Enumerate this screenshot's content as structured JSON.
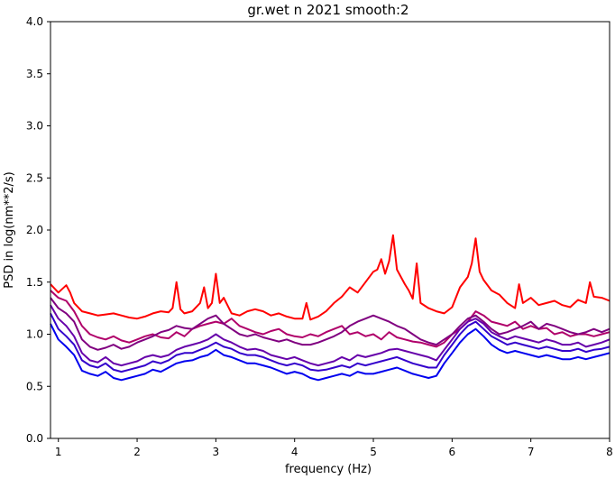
{
  "chart_data": {
    "type": "line",
    "title": "gr.wet n 2021 smooth:2",
    "xlabel": "frequency (Hz)",
    "ylabel": "PSD in log(nm**2/s)",
    "xlim": [
      0.9,
      8.0
    ],
    "ylim": [
      0.0,
      4.0
    ],
    "xticks": [
      1,
      2,
      3,
      4,
      5,
      6,
      7,
      8
    ],
    "yticks": [
      0.0,
      0.5,
      1.0,
      1.5,
      2.0,
      2.5,
      3.0,
      3.5,
      4.0
    ],
    "grid": false,
    "legend": "none",
    "series": [
      {
        "color": "#ff0000",
        "x": [
          0.9,
          1.0,
          1.1,
          1.15,
          1.2,
          1.3,
          1.4,
          1.5,
          1.6,
          1.7,
          1.8,
          1.9,
          2.0,
          2.1,
          2.2,
          2.3,
          2.4,
          2.45,
          2.5,
          2.55,
          2.6,
          2.7,
          2.8,
          2.85,
          2.9,
          2.95,
          3.0,
          3.05,
          3.1,
          3.2,
          3.3,
          3.4,
          3.5,
          3.6,
          3.7,
          3.8,
          3.9,
          4.0,
          4.1,
          4.15,
          4.2,
          4.3,
          4.4,
          4.5,
          4.6,
          4.7,
          4.8,
          4.9,
          5.0,
          5.05,
          5.1,
          5.15,
          5.2,
          5.25,
          5.3,
          5.35,
          5.4,
          5.45,
          5.5,
          5.55,
          5.6,
          5.7,
          5.8,
          5.9,
          6.0,
          6.1,
          6.2,
          6.25,
          6.3,
          6.35,
          6.4,
          6.5,
          6.6,
          6.7,
          6.8,
          6.85,
          6.9,
          7.0,
          7.1,
          7.2,
          7.3,
          7.4,
          7.5,
          7.6,
          7.7,
          7.75,
          7.8,
          7.9,
          8.0
        ],
        "y": [
          1.48,
          1.4,
          1.47,
          1.4,
          1.3,
          1.22,
          1.2,
          1.18,
          1.19,
          1.2,
          1.18,
          1.16,
          1.15,
          1.17,
          1.2,
          1.22,
          1.21,
          1.25,
          1.5,
          1.24,
          1.2,
          1.22,
          1.3,
          1.45,
          1.25,
          1.3,
          1.58,
          1.3,
          1.35,
          1.2,
          1.18,
          1.22,
          1.24,
          1.22,
          1.18,
          1.2,
          1.17,
          1.15,
          1.15,
          1.3,
          1.14,
          1.17,
          1.22,
          1.3,
          1.36,
          1.45,
          1.4,
          1.5,
          1.6,
          1.62,
          1.72,
          1.58,
          1.7,
          1.95,
          1.62,
          1.55,
          1.48,
          1.42,
          1.34,
          1.68,
          1.3,
          1.25,
          1.22,
          1.2,
          1.26,
          1.45,
          1.55,
          1.68,
          1.92,
          1.6,
          1.52,
          1.42,
          1.38,
          1.3,
          1.25,
          1.48,
          1.3,
          1.35,
          1.28,
          1.3,
          1.32,
          1.28,
          1.26,
          1.33,
          1.3,
          1.5,
          1.36,
          1.35,
          1.32
        ]
      },
      {
        "color": "#b0006a",
        "x": [
          0.9,
          1.0,
          1.1,
          1.2,
          1.3,
          1.4,
          1.5,
          1.6,
          1.7,
          1.8,
          1.9,
          2.0,
          2.1,
          2.2,
          2.3,
          2.4,
          2.5,
          2.6,
          2.7,
          2.8,
          2.9,
          3.0,
          3.1,
          3.2,
          3.3,
          3.4,
          3.5,
          3.6,
          3.7,
          3.8,
          3.9,
          4.0,
          4.1,
          4.2,
          4.3,
          4.4,
          4.5,
          4.6,
          4.7,
          4.8,
          4.9,
          5.0,
          5.1,
          5.2,
          5.3,
          5.4,
          5.5,
          5.6,
          5.7,
          5.8,
          5.9,
          6.0,
          6.1,
          6.2,
          6.3,
          6.4,
          6.5,
          6.6,
          6.7,
          6.8,
          6.9,
          7.0,
          7.1,
          7.2,
          7.3,
          7.4,
          7.5,
          7.6,
          7.7,
          7.8,
          7.9,
          8.0
        ],
        "y": [
          1.42,
          1.35,
          1.32,
          1.22,
          1.08,
          1.0,
          0.97,
          0.95,
          0.98,
          0.94,
          0.92,
          0.95,
          0.98,
          1.0,
          0.97,
          0.96,
          1.02,
          0.98,
          1.05,
          1.08,
          1.1,
          1.12,
          1.1,
          1.15,
          1.08,
          1.05,
          1.02,
          1.0,
          1.03,
          1.05,
          1.0,
          0.98,
          0.97,
          1.0,
          0.98,
          1.02,
          1.05,
          1.08,
          1.0,
          1.02,
          0.98,
          1.0,
          0.95,
          1.02,
          0.97,
          0.95,
          0.93,
          0.92,
          0.9,
          0.88,
          0.92,
          1.0,
          1.05,
          1.12,
          1.22,
          1.18,
          1.12,
          1.1,
          1.08,
          1.12,
          1.05,
          1.08,
          1.05,
          1.06,
          1.0,
          1.02,
          0.98,
          1.0,
          1.0,
          0.98,
          1.0,
          1.02
        ]
      },
      {
        "color": "#800080",
        "x": [
          0.9,
          1.0,
          1.1,
          1.2,
          1.3,
          1.4,
          1.5,
          1.6,
          1.7,
          1.8,
          1.9,
          2.0,
          2.1,
          2.2,
          2.3,
          2.4,
          2.5,
          2.6,
          2.7,
          2.8,
          2.9,
          3.0,
          3.1,
          3.2,
          3.3,
          3.4,
          3.5,
          3.6,
          3.7,
          3.8,
          3.9,
          4.0,
          4.1,
          4.2,
          4.3,
          4.4,
          4.5,
          4.6,
          4.7,
          4.8,
          4.9,
          5.0,
          5.1,
          5.2,
          5.3,
          5.4,
          5.5,
          5.6,
          5.7,
          5.8,
          5.9,
          6.0,
          6.1,
          6.2,
          6.3,
          6.4,
          6.5,
          6.6,
          6.7,
          6.8,
          6.9,
          7.0,
          7.1,
          7.2,
          7.3,
          7.4,
          7.5,
          7.6,
          7.7,
          7.8,
          7.9,
          8.0
        ],
        "y": [
          1.35,
          1.25,
          1.2,
          1.12,
          0.95,
          0.88,
          0.85,
          0.87,
          0.9,
          0.86,
          0.88,
          0.92,
          0.95,
          0.98,
          1.02,
          1.04,
          1.08,
          1.06,
          1.05,
          1.1,
          1.15,
          1.18,
          1.1,
          1.05,
          1.0,
          0.98,
          1.0,
          0.97,
          0.95,
          0.93,
          0.95,
          0.92,
          0.9,
          0.9,
          0.92,
          0.95,
          0.98,
          1.02,
          1.08,
          1.12,
          1.15,
          1.18,
          1.15,
          1.12,
          1.08,
          1.05,
          1.0,
          0.95,
          0.92,
          0.9,
          0.95,
          1.0,
          1.08,
          1.15,
          1.18,
          1.12,
          1.05,
          1.0,
          1.02,
          1.05,
          1.08,
          1.12,
          1.05,
          1.1,
          1.08,
          1.05,
          1.02,
          1.0,
          1.02,
          1.05,
          1.02,
          1.05
        ]
      },
      {
        "color": "#6600aa",
        "x": [
          0.9,
          1.0,
          1.1,
          1.2,
          1.3,
          1.4,
          1.5,
          1.6,
          1.7,
          1.8,
          1.9,
          2.0,
          2.1,
          2.2,
          2.3,
          2.4,
          2.5,
          2.6,
          2.7,
          2.8,
          2.9,
          3.0,
          3.1,
          3.2,
          3.3,
          3.4,
          3.5,
          3.6,
          3.7,
          3.8,
          3.9,
          4.0,
          4.1,
          4.2,
          4.3,
          4.4,
          4.5,
          4.6,
          4.7,
          4.8,
          4.9,
          5.0,
          5.1,
          5.2,
          5.3,
          5.4,
          5.5,
          5.6,
          5.7,
          5.8,
          5.9,
          6.0,
          6.1,
          6.2,
          6.3,
          6.4,
          6.5,
          6.6,
          6.7,
          6.8,
          6.9,
          7.0,
          7.1,
          7.2,
          7.3,
          7.4,
          7.5,
          7.6,
          7.7,
          7.8,
          7.9,
          8.0
        ],
        "y": [
          1.28,
          1.15,
          1.08,
          0.98,
          0.82,
          0.75,
          0.73,
          0.78,
          0.72,
          0.7,
          0.72,
          0.74,
          0.78,
          0.8,
          0.78,
          0.8,
          0.85,
          0.88,
          0.9,
          0.92,
          0.95,
          1.0,
          0.95,
          0.92,
          0.88,
          0.85,
          0.86,
          0.84,
          0.8,
          0.78,
          0.76,
          0.78,
          0.75,
          0.72,
          0.7,
          0.72,
          0.74,
          0.78,
          0.75,
          0.8,
          0.78,
          0.8,
          0.82,
          0.85,
          0.86,
          0.84,
          0.82,
          0.8,
          0.78,
          0.75,
          0.85,
          0.95,
          1.05,
          1.12,
          1.15,
          1.1,
          1.02,
          0.98,
          0.95,
          0.98,
          0.96,
          0.94,
          0.92,
          0.95,
          0.93,
          0.9,
          0.9,
          0.92,
          0.88,
          0.9,
          0.92,
          0.95
        ]
      },
      {
        "color": "#3300cc",
        "x": [
          0.9,
          1.0,
          1.1,
          1.2,
          1.3,
          1.4,
          1.5,
          1.6,
          1.7,
          1.8,
          1.9,
          2.0,
          2.1,
          2.2,
          2.3,
          2.4,
          2.5,
          2.6,
          2.7,
          2.8,
          2.9,
          3.0,
          3.1,
          3.2,
          3.3,
          3.4,
          3.5,
          3.6,
          3.7,
          3.8,
          3.9,
          4.0,
          4.1,
          4.2,
          4.3,
          4.4,
          4.5,
          4.6,
          4.7,
          4.8,
          4.9,
          5.0,
          5.1,
          5.2,
          5.3,
          5.4,
          5.5,
          5.6,
          5.7,
          5.8,
          5.9,
          6.0,
          6.1,
          6.2,
          6.3,
          6.4,
          6.5,
          6.6,
          6.7,
          6.8,
          6.9,
          7.0,
          7.1,
          7.2,
          7.3,
          7.4,
          7.5,
          7.6,
          7.7,
          7.8,
          7.9,
          8.0
        ],
        "y": [
          1.2,
          1.05,
          0.98,
          0.9,
          0.75,
          0.7,
          0.68,
          0.72,
          0.66,
          0.64,
          0.66,
          0.68,
          0.7,
          0.74,
          0.72,
          0.75,
          0.8,
          0.82,
          0.82,
          0.85,
          0.88,
          0.92,
          0.88,
          0.86,
          0.82,
          0.8,
          0.8,
          0.78,
          0.75,
          0.72,
          0.7,
          0.72,
          0.7,
          0.66,
          0.65,
          0.66,
          0.68,
          0.7,
          0.68,
          0.72,
          0.7,
          0.72,
          0.74,
          0.76,
          0.78,
          0.75,
          0.72,
          0.7,
          0.68,
          0.68,
          0.8,
          0.9,
          1.0,
          1.08,
          1.12,
          1.05,
          0.98,
          0.94,
          0.9,
          0.92,
          0.9,
          0.88,
          0.86,
          0.88,
          0.86,
          0.84,
          0.84,
          0.86,
          0.83,
          0.85,
          0.86,
          0.88
        ]
      },
      {
        "color": "#0000ee",
        "x": [
          0.9,
          1.0,
          1.1,
          1.2,
          1.3,
          1.4,
          1.5,
          1.6,
          1.7,
          1.8,
          1.9,
          2.0,
          2.1,
          2.2,
          2.3,
          2.4,
          2.5,
          2.6,
          2.7,
          2.8,
          2.9,
          3.0,
          3.1,
          3.2,
          3.3,
          3.4,
          3.5,
          3.6,
          3.7,
          3.8,
          3.9,
          4.0,
          4.1,
          4.2,
          4.3,
          4.4,
          4.5,
          4.6,
          4.7,
          4.8,
          4.9,
          5.0,
          5.1,
          5.2,
          5.3,
          5.4,
          5.5,
          5.6,
          5.7,
          5.8,
          5.9,
          6.0,
          6.1,
          6.2,
          6.3,
          6.4,
          6.5,
          6.6,
          6.7,
          6.8,
          6.9,
          7.0,
          7.1,
          7.2,
          7.3,
          7.4,
          7.5,
          7.6,
          7.7,
          7.8,
          7.9,
          8.0
        ],
        "y": [
          1.1,
          0.95,
          0.88,
          0.8,
          0.65,
          0.62,
          0.6,
          0.64,
          0.58,
          0.56,
          0.58,
          0.6,
          0.62,
          0.66,
          0.64,
          0.68,
          0.72,
          0.74,
          0.75,
          0.78,
          0.8,
          0.85,
          0.8,
          0.78,
          0.75,
          0.72,
          0.72,
          0.7,
          0.68,
          0.65,
          0.62,
          0.64,
          0.62,
          0.58,
          0.56,
          0.58,
          0.6,
          0.62,
          0.6,
          0.64,
          0.62,
          0.62,
          0.64,
          0.66,
          0.68,
          0.65,
          0.62,
          0.6,
          0.58,
          0.6,
          0.72,
          0.82,
          0.92,
          1.0,
          1.05,
          0.98,
          0.9,
          0.85,
          0.82,
          0.84,
          0.82,
          0.8,
          0.78,
          0.8,
          0.78,
          0.76,
          0.76,
          0.78,
          0.76,
          0.78,
          0.8,
          0.82
        ]
      }
    ]
  }
}
